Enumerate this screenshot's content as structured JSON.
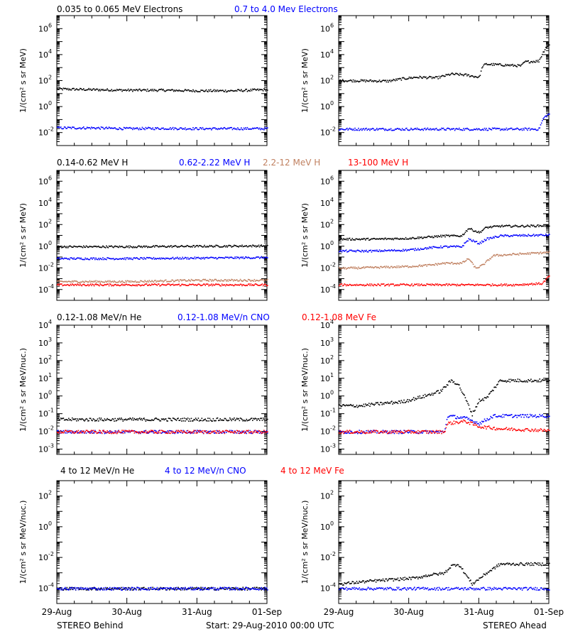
{
  "footer": {
    "left": "STEREO Behind",
    "center": "Start: 29-Aug-2010 00:00 UTC",
    "right": "STEREO Ahead"
  },
  "colors": {
    "black": "#000000",
    "blue": "#0000ff",
    "tan": "#c08060",
    "red": "#ff0000"
  },
  "chart_data": [
    {
      "type": "scatter",
      "panel": "row1-left",
      "title": "",
      "legend": [
        {
          "text": "0.035 to 0.065 MeV Electrons",
          "color": "#000000"
        },
        {
          "text": "0.7 to 4.0 Mev Electrons",
          "color": "#0000ff"
        }
      ],
      "ylabel": "1/(cm² s sr MeV)",
      "yscale": "log",
      "ylim": [
        0.001,
        10000000
      ],
      "ytick_exponents": [
        -2,
        0,
        2,
        4,
        6
      ],
      "xlim": [
        0,
        3
      ],
      "xticks": [
        "",
        "",
        "",
        ""
      ],
      "series": [
        {
          "color": "#000000",
          "x": [
            0,
            0.5,
            1,
            1.5,
            2,
            2.5,
            3
          ],
          "y": [
            25,
            22,
            20,
            20,
            18,
            18,
            22
          ]
        },
        {
          "color": "#0000ff",
          "x": [
            0,
            0.5,
            1,
            1.5,
            2,
            2.5,
            3
          ],
          "y": [
            0.025,
            0.025,
            0.022,
            0.023,
            0.022,
            0.022,
            0.022
          ]
        }
      ]
    },
    {
      "type": "scatter",
      "panel": "row1-right",
      "title": "",
      "legend": [],
      "ylabel": "1/(cm² s sr MeV)",
      "yscale": "log",
      "ylim": [
        0.001,
        10000000
      ],
      "ytick_exponents": [
        -2,
        0,
        2,
        4,
        6
      ],
      "xlim": [
        0,
        3
      ],
      "xticks": [
        "",
        "",
        "",
        ""
      ],
      "series": [
        {
          "color": "#000000",
          "x": [
            0,
            0.4,
            0.7,
            0.9,
            1.1,
            1.4,
            1.6,
            1.8,
            2.0,
            2.05,
            2.1,
            2.3,
            2.6,
            2.65,
            2.85,
            2.95,
            3
          ],
          "y": [
            110,
            105,
            100,
            150,
            200,
            180,
            350,
            300,
            200,
            1500,
            2000,
            1800,
            1500,
            3000,
            3500,
            40000,
            60000
          ]
        },
        {
          "color": "#0000ff",
          "x": [
            0,
            0.5,
            1,
            1.5,
            2,
            2.5,
            2.85,
            2.92,
            3
          ],
          "y": [
            0.02,
            0.02,
            0.02,
            0.02,
            0.02,
            0.02,
            0.02,
            0.15,
            0.3
          ]
        }
      ]
    },
    {
      "type": "scatter",
      "panel": "row2-left",
      "title": "",
      "legend": [
        {
          "text": "0.14-0.62 MeV H",
          "color": "#000000"
        },
        {
          "text": "0.62-2.22 MeV H",
          "color": "#0000ff"
        },
        {
          "text": "2.2-12 MeV H",
          "color": "#c08060"
        },
        {
          "text": "13-100 MeV H",
          "color": "#ff0000"
        }
      ],
      "ylabel": "1/(cm² s sr MeV)",
      "yscale": "log",
      "ylim": [
        1e-05,
        10000000
      ],
      "ytick_exponents": [
        -4,
        -2,
        0,
        2,
        4,
        6
      ],
      "xlim": [
        0,
        3
      ],
      "xticks": [
        "",
        "",
        "",
        ""
      ],
      "series": [
        {
          "color": "#000000",
          "x": [
            0,
            1,
            2,
            3
          ],
          "y": [
            1,
            1,
            1.1,
            1.2
          ]
        },
        {
          "color": "#0000ff",
          "x": [
            0,
            1,
            2,
            3
          ],
          "y": [
            0.08,
            0.08,
            0.09,
            0.1
          ]
        },
        {
          "color": "#c08060",
          "x": [
            0,
            1,
            2,
            3
          ],
          "y": [
            0.0006,
            0.0006,
            0.0008,
            0.0008
          ]
        },
        {
          "color": "#ff0000",
          "x": [
            0,
            1,
            2,
            3
          ],
          "y": [
            0.0003,
            0.0003,
            0.0003,
            0.0003
          ]
        }
      ]
    },
    {
      "type": "scatter",
      "panel": "row2-right",
      "title": "",
      "legend": [],
      "ylabel": "1/(cm² s sr MeV)",
      "yscale": "log",
      "ylim": [
        1e-05,
        10000000
      ],
      "ytick_exponents": [
        -4,
        -2,
        0,
        2,
        4,
        6
      ],
      "xlim": [
        0,
        3
      ],
      "xticks": [
        "",
        "",
        "",
        ""
      ],
      "series": [
        {
          "color": "#000000",
          "x": [
            0,
            0.5,
            1,
            1.3,
            1.5,
            1.75,
            1.85,
            2.0,
            2.1,
            2.3,
            2.6,
            3
          ],
          "y": [
            5,
            5,
            6,
            8,
            10,
            10,
            50,
            20,
            60,
            80,
            80,
            90
          ]
        },
        {
          "color": "#0000ff",
          "x": [
            0,
            0.5,
            1,
            1.3,
            1.5,
            1.75,
            1.85,
            2.0,
            2.1,
            2.3,
            3
          ],
          "y": [
            0.4,
            0.4,
            0.5,
            0.8,
            1,
            1,
            5,
            2,
            5,
            10,
            12
          ]
        },
        {
          "color": "#c08060",
          "x": [
            0,
            0.5,
            1,
            1.3,
            1.5,
            1.75,
            1.85,
            1.95,
            2.05,
            2.2,
            2.5,
            3
          ],
          "y": [
            0.01,
            0.012,
            0.015,
            0.02,
            0.03,
            0.03,
            0.08,
            0.01,
            0.02,
            0.15,
            0.2,
            0.3
          ]
        },
        {
          "color": "#ff0000",
          "x": [
            0,
            0.5,
            1,
            1.5,
            2,
            2.5,
            2.9,
            3
          ],
          "y": [
            0.0003,
            0.0003,
            0.0003,
            0.0003,
            0.0003,
            0.0003,
            0.0004,
            0.002
          ]
        }
      ]
    },
    {
      "type": "scatter",
      "panel": "row3-left",
      "title": "",
      "legend": [
        {
          "text": "0.12-1.08 MeV/n He",
          "color": "#000000"
        },
        {
          "text": "0.12-1.08 MeV/n CNO",
          "color": "#0000ff"
        },
        {
          "text": "0.12-1.08 MeV Fe",
          "color": "#ff0000"
        }
      ],
      "ylabel": "1/(cm² s sr MeV/nuc.)",
      "yscale": "log",
      "ylim": [
        0.0005,
        10000
      ],
      "ytick_exponents": [
        -3,
        -2,
        -1,
        0,
        1,
        2,
        3,
        4
      ],
      "xlim": [
        0,
        3
      ],
      "xticks": [
        "",
        "",
        "",
        ""
      ],
      "series": [
        {
          "color": "#000000",
          "x": [
            0,
            0.5,
            1,
            1.5,
            2,
            2.5,
            3
          ],
          "y": [
            0.05,
            0.05,
            0.05,
            0.05,
            0.05,
            0.05,
            0.05
          ]
        },
        {
          "color": "#0000ff",
          "x": [
            0,
            1,
            2,
            3
          ],
          "y": [
            0.01,
            0.01,
            0.01,
            0.01
          ]
        },
        {
          "color": "#ff0000",
          "x": [
            0,
            1,
            2,
            3
          ],
          "y": [
            0.01,
            0.01,
            0.01,
            0.01
          ]
        }
      ]
    },
    {
      "type": "scatter",
      "panel": "row3-right",
      "title": "",
      "legend": [],
      "ylabel": "1/(cm² s sr MeV/nuc.)",
      "yscale": "log",
      "ylim": [
        0.0005,
        10000
      ],
      "ytick_exponents": [
        -3,
        -2,
        -1,
        0,
        1,
        2,
        3,
        4
      ],
      "xlim": [
        0,
        3
      ],
      "xticks": [
        "",
        "",
        "",
        ""
      ],
      "series": [
        {
          "color": "#000000",
          "x": [
            0,
            0.3,
            0.6,
            0.9,
            1.2,
            1.45,
            1.6,
            1.7,
            1.8,
            1.9,
            2.0,
            2.1,
            2.3,
            2.6,
            3
          ],
          "y": [
            0.3,
            0.3,
            0.4,
            0.5,
            1,
            2,
            8,
            5,
            0.8,
            0.1,
            0.6,
            0.8,
            8,
            8,
            8
          ]
        },
        {
          "color": "#0000ff",
          "x": [
            0,
            1,
            1.5,
            1.55,
            1.8,
            2.0,
            2.2,
            2.6,
            3
          ],
          "y": [
            0.01,
            0.01,
            0.01,
            0.08,
            0.06,
            0.03,
            0.08,
            0.08,
            0.08
          ]
        },
        {
          "color": "#ff0000",
          "x": [
            0,
            1,
            1.5,
            1.55,
            1.8,
            2.0,
            2.3,
            3
          ],
          "y": [
            0.01,
            0.01,
            0.01,
            0.03,
            0.04,
            0.02,
            0.015,
            0.012
          ]
        }
      ]
    },
    {
      "type": "scatter",
      "panel": "row4-left",
      "title": "",
      "legend": [
        {
          "text": "4 to 12 MeV/n He",
          "color": "#000000"
        },
        {
          "text": "4 to 12 MeV/n CNO",
          "color": "#0000ff"
        },
        {
          "text": "4 to 12 MeV Fe",
          "color": "#ff0000"
        }
      ],
      "ylabel": "1/(cm² s sr MeV/nuc.)",
      "yscale": "log",
      "ylim": [
        1e-05,
        1000
      ],
      "ytick_exponents": [
        -4,
        -2,
        0,
        2
      ],
      "xlim": [
        0,
        3
      ],
      "xticks": [
        "29-Aug",
        "30-Aug",
        "31-Aug",
        "01-Sep"
      ],
      "series": [
        {
          "color": "#000000",
          "x": [
            0,
            1,
            2,
            3
          ],
          "y": [
            0.0001,
            0.0001,
            0.0001,
            0.0001
          ]
        },
        {
          "color": "#0000ff",
          "x": [
            0,
            1,
            2,
            3
          ],
          "y": [
            0.0001,
            0.0001,
            0.0001,
            0.0001
          ]
        }
      ]
    },
    {
      "type": "scatter",
      "panel": "row4-right",
      "title": "",
      "legend": [],
      "ylabel": "1/(cm² s sr MeV/nuc.)",
      "yscale": "log",
      "ylim": [
        1e-05,
        1000
      ],
      "ytick_exponents": [
        -4,
        -2,
        0,
        2
      ],
      "xlim": [
        0,
        3
      ],
      "xticks": [
        "29-Aug",
        "30-Aug",
        "31-Aug",
        "01-Sep"
      ],
      "series": [
        {
          "color": "#000000",
          "x": [
            0,
            0.4,
            0.8,
            1.1,
            1.3,
            1.5,
            1.6,
            1.7,
            1.75,
            1.9,
            2.1,
            2.3,
            2.6,
            3
          ],
          "y": [
            0.0002,
            0.0003,
            0.0004,
            0.0005,
            0.0008,
            0.001,
            0.003,
            0.004,
            0.002,
            0.0002,
            0.001,
            0.004,
            0.004,
            0.004
          ]
        },
        {
          "color": "#0000ff",
          "x": [
            0,
            1,
            2,
            3
          ],
          "y": [
            0.0001,
            0.0001,
            0.0001,
            0.0001
          ]
        }
      ]
    }
  ]
}
